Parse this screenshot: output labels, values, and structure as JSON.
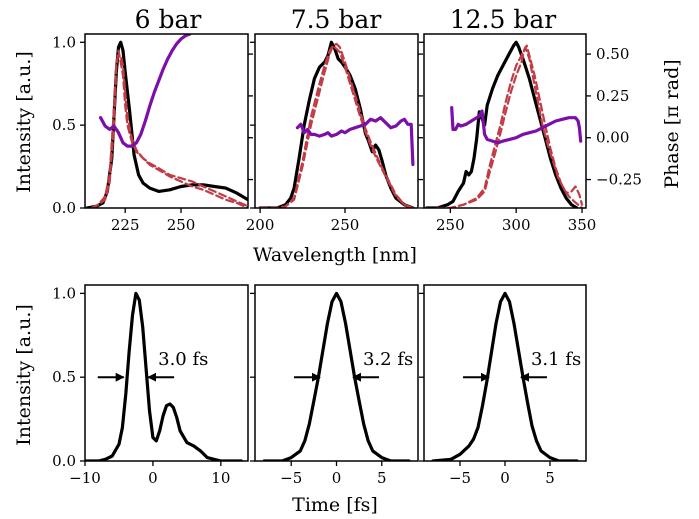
{
  "colors": {
    "spectrum": "#000000",
    "retrieved": "#c23b45",
    "phase": "#7b0fa8"
  },
  "chart_data": [
    {
      "type": "line",
      "title": "6 bar",
      "xlabel": "Wavelength [nm]",
      "ylabel": "Intensity [a.u.]",
      "xlim": [
        207,
        280
      ],
      "ylim": [
        0,
        1.05
      ],
      "xticks": [
        225,
        250
      ],
      "yticks": [
        0.0,
        0.5,
        1.0
      ],
      "y2lim": [
        -0.42,
        0.62
      ],
      "series": [
        {
          "style": "solid",
          "color": "#000000",
          "axis": "left",
          "x": [
            208,
            212,
            215,
            217,
            219,
            220,
            221,
            222,
            223,
            224,
            225,
            227,
            229,
            231,
            233,
            236,
            240,
            245,
            250,
            255,
            260,
            265,
            270,
            275,
            280
          ],
          "y": [
            0.0,
            0.01,
            0.03,
            0.1,
            0.3,
            0.55,
            0.82,
            0.97,
            1.0,
            0.95,
            0.82,
            0.58,
            0.32,
            0.2,
            0.15,
            0.12,
            0.1,
            0.11,
            0.13,
            0.14,
            0.14,
            0.13,
            0.12,
            0.09,
            0.05
          ]
        },
        {
          "style": "dashed",
          "color": "#c23b45",
          "axis": "left",
          "x": [
            210,
            213,
            216,
            218,
            220,
            221,
            222,
            223,
            224,
            225,
            226,
            228,
            230,
            233,
            236,
            240,
            245,
            250,
            255,
            260,
            265,
            270,
            275,
            280
          ],
          "y": [
            0.0,
            0.02,
            0.05,
            0.15,
            0.5,
            0.85,
            0.95,
            0.88,
            0.8,
            0.62,
            0.5,
            0.4,
            0.34,
            0.3,
            0.27,
            0.24,
            0.2,
            0.18,
            0.16,
            0.13,
            0.1,
            0.07,
            0.04,
            0.01
          ]
        },
        {
          "style": "dashed",
          "color": "#c23b45",
          "axis": "left",
          "x": [
            210,
            213,
            216,
            218,
            220,
            221,
            222,
            223,
            224,
            225,
            226,
            228,
            230,
            233,
            236,
            240,
            245,
            250,
            255,
            260,
            265,
            270,
            275,
            280
          ],
          "y": [
            0.0,
            0.02,
            0.07,
            0.2,
            0.6,
            0.88,
            0.92,
            0.92,
            0.86,
            0.7,
            0.55,
            0.42,
            0.35,
            0.3,
            0.26,
            0.23,
            0.19,
            0.16,
            0.13,
            0.11,
            0.08,
            0.05,
            0.03,
            0.0
          ]
        },
        {
          "style": "solid",
          "color": "#7b0fa8",
          "axis": "right",
          "x": [
            214,
            216,
            218,
            220,
            222,
            224,
            226,
            228,
            230,
            232,
            234,
            236,
            238,
            240,
            242,
            244,
            246,
            248,
            250,
            252,
            254
          ],
          "y": [
            0.12,
            0.07,
            0.05,
            0.07,
            0.03,
            -0.03,
            -0.05,
            -0.05,
            -0.03,
            0.02,
            0.1,
            0.19,
            0.27,
            0.34,
            0.41,
            0.47,
            0.52,
            0.56,
            0.59,
            0.61,
            0.62
          ]
        }
      ]
    },
    {
      "type": "line",
      "title": "7.5 bar",
      "xlabel": "",
      "ylabel": "",
      "xlim": [
        197,
        293
      ],
      "ylim": [
        0,
        1.05
      ],
      "xticks": [
        200,
        250
      ],
      "y2lim": [
        -0.42,
        0.62
      ],
      "series": [
        {
          "style": "solid",
          "color": "#000000",
          "axis": "left",
          "x": [
            200,
            210,
            215,
            218,
            220,
            223,
            226,
            229,
            232,
            235,
            238,
            240,
            242,
            244,
            246,
            248,
            250,
            253,
            256,
            259,
            262,
            264,
            266,
            268,
            270,
            272,
            274,
            277,
            280,
            285,
            290
          ],
          "y": [
            0.0,
            0.0,
            0.02,
            0.06,
            0.12,
            0.3,
            0.5,
            0.65,
            0.78,
            0.85,
            0.88,
            0.92,
            1.0,
            0.96,
            0.9,
            0.88,
            0.85,
            0.8,
            0.72,
            0.6,
            0.45,
            0.4,
            0.34,
            0.38,
            0.35,
            0.28,
            0.2,
            0.12,
            0.06,
            0.02,
            0.0
          ]
        },
        {
          "style": "dashed",
          "color": "#c23b45",
          "axis": "left",
          "x": [
            200,
            210,
            215,
            220,
            225,
            230,
            235,
            238,
            241,
            243,
            245,
            247,
            250,
            253,
            256,
            259,
            262,
            265,
            268,
            271,
            274,
            277,
            280,
            285,
            290
          ],
          "y": [
            0.0,
            0.0,
            0.01,
            0.05,
            0.25,
            0.5,
            0.7,
            0.82,
            0.93,
            0.98,
            0.99,
            0.97,
            0.88,
            0.78,
            0.68,
            0.58,
            0.48,
            0.4,
            0.33,
            0.26,
            0.2,
            0.14,
            0.08,
            0.02,
            0.0
          ]
        },
        {
          "style": "dashed",
          "color": "#c23b45",
          "axis": "left",
          "x": [
            200,
            210,
            215,
            220,
            225,
            230,
            235,
            238,
            241,
            243,
            245,
            247,
            250,
            253,
            256,
            259,
            262,
            265,
            268,
            271,
            274,
            277,
            280,
            285,
            290
          ],
          "y": [
            0.0,
            0.0,
            0.01,
            0.06,
            0.28,
            0.55,
            0.75,
            0.86,
            0.95,
            0.98,
            0.96,
            0.94,
            0.85,
            0.75,
            0.65,
            0.55,
            0.46,
            0.38,
            0.31,
            0.25,
            0.19,
            0.13,
            0.07,
            0.02,
            0.0
          ]
        },
        {
          "style": "solid",
          "color": "#7b0fa8",
          "axis": "right",
          "x": [
            222,
            224,
            226,
            228,
            230,
            232,
            235,
            238,
            240,
            242,
            245,
            248,
            250,
            253,
            256,
            259,
            262,
            265,
            268,
            271,
            274,
            277,
            280,
            283,
            285,
            287,
            289,
            290
          ],
          "y": [
            0.06,
            0.08,
            0.03,
            0.05,
            0.02,
            0.02,
            0.01,
            0.02,
            0.03,
            0.01,
            0.02,
            0.04,
            0.03,
            0.05,
            0.06,
            0.07,
            0.08,
            0.11,
            0.1,
            0.12,
            0.09,
            0.06,
            0.07,
            0.1,
            0.11,
            0.08,
            0.08,
            -0.16
          ]
        }
      ]
    },
    {
      "type": "line",
      "title": "12.5 bar",
      "xlabel": "",
      "ylabel": "Phase [π rad]",
      "xlim": [
        230,
        353
      ],
      "ylim": [
        0,
        1.05
      ],
      "xticks": [
        250,
        300,
        350
      ],
      "y2lim": [
        -0.42,
        0.62
      ],
      "y2ticks": [
        -0.25,
        0.0,
        0.25,
        0.5
      ],
      "series": [
        {
          "style": "solid",
          "color": "#000000",
          "axis": "left",
          "x": [
            232,
            240,
            248,
            252,
            256,
            260,
            262,
            264,
            266,
            268,
            270,
            272,
            274,
            276,
            278,
            282,
            286,
            290,
            294,
            298,
            300,
            302,
            306,
            310,
            314,
            318,
            322,
            326,
            330,
            334,
            338,
            342,
            346
          ],
          "y": [
            0.0,
            0.0,
            0.02,
            0.04,
            0.1,
            0.15,
            0.22,
            0.2,
            0.22,
            0.3,
            0.42,
            0.58,
            0.54,
            0.5,
            0.62,
            0.72,
            0.8,
            0.86,
            0.92,
            0.98,
            1.0,
            0.97,
            0.88,
            0.78,
            0.66,
            0.54,
            0.42,
            0.3,
            0.2,
            0.12,
            0.06,
            0.02,
            0.0
          ]
        },
        {
          "style": "dashed",
          "color": "#c23b45",
          "axis": "left",
          "x": [
            240,
            250,
            260,
            270,
            276,
            280,
            284,
            288,
            292,
            296,
            300,
            304,
            306,
            308,
            310,
            314,
            318,
            322,
            326,
            330,
            334,
            338,
            342,
            345,
            348,
            350
          ],
          "y": [
            0.0,
            0.0,
            0.02,
            0.05,
            0.1,
            0.22,
            0.33,
            0.45,
            0.58,
            0.7,
            0.8,
            0.88,
            0.95,
            0.98,
            0.92,
            0.8,
            0.65,
            0.5,
            0.36,
            0.24,
            0.15,
            0.09,
            0.1,
            0.13,
            0.08,
            0.02
          ]
        },
        {
          "style": "dashed",
          "color": "#c23b45",
          "axis": "left",
          "x": [
            240,
            250,
            260,
            270,
            276,
            280,
            284,
            288,
            292,
            296,
            300,
            304,
            307,
            310,
            313,
            316,
            320,
            324,
            328,
            332,
            336,
            340,
            344,
            347,
            350
          ],
          "y": [
            0.0,
            0.0,
            0.02,
            0.06,
            0.12,
            0.26,
            0.38,
            0.5,
            0.64,
            0.76,
            0.86,
            0.92,
            0.97,
            0.9,
            0.78,
            0.66,
            0.5,
            0.38,
            0.28,
            0.18,
            0.12,
            0.07,
            0.04,
            0.02,
            0.0
          ]
        },
        {
          "style": "solid",
          "color": "#7b0fa8",
          "axis": "right",
          "x": [
            251,
            252,
            254,
            256,
            258,
            262,
            266,
            270,
            272,
            274,
            276,
            278,
            282,
            286,
            290,
            295,
            300,
            305,
            310,
            315,
            320,
            325,
            330,
            335,
            340,
            345,
            347,
            348,
            349
          ],
          "y": [
            0.18,
            0.05,
            0.05,
            0.08,
            0.07,
            0.08,
            0.1,
            0.12,
            0.13,
            0.16,
            0.02,
            -0.01,
            -0.02,
            -0.03,
            -0.02,
            -0.01,
            0.0,
            0.02,
            0.03,
            0.04,
            0.06,
            0.08,
            0.1,
            0.11,
            0.12,
            0.12,
            0.1,
            0.06,
            -0.02
          ]
        }
      ]
    },
    {
      "type": "line",
      "title": "",
      "xlabel": "",
      "ylabel": "Intensity [a.u.]",
      "xlim": [
        -10,
        14
      ],
      "ylim": [
        0,
        1.05
      ],
      "xticks": [
        -10,
        0,
        10
      ],
      "yticks": [
        0.0,
        0.5,
        1.0
      ],
      "annotation": "3.0 fs",
      "fwhm": [
        -4.0,
        -1.0
      ],
      "series": [
        {
          "style": "solid",
          "color": "#000000",
          "axis": "left",
          "x": [
            -10,
            -8,
            -7,
            -6,
            -5,
            -4.5,
            -4,
            -3.5,
            -3,
            -2.5,
            -2,
            -1.5,
            -1,
            -0.5,
            0,
            0.5,
            1,
            1.5,
            2,
            2.5,
            3,
            3.5,
            4,
            5,
            6,
            7,
            8,
            9,
            10,
            11,
            12,
            13
          ],
          "y": [
            0.0,
            0.0,
            0.01,
            0.03,
            0.1,
            0.2,
            0.4,
            0.65,
            0.87,
            1.0,
            0.96,
            0.8,
            0.55,
            0.3,
            0.14,
            0.12,
            0.18,
            0.27,
            0.33,
            0.34,
            0.32,
            0.26,
            0.18,
            0.11,
            0.09,
            0.06,
            0.02,
            0.01,
            0.0,
            0.0,
            0.0,
            0.0
          ]
        }
      ]
    },
    {
      "type": "line",
      "title": "",
      "xlabel": "Time [fs]",
      "ylabel": "",
      "xlim": [
        -9,
        9
      ],
      "ylim": [
        0,
        1.05
      ],
      "xticks": [
        -5,
        0,
        5
      ],
      "annotation": "3.2 fs",
      "fwhm": [
        -1.6,
        1.6
      ],
      "series": [
        {
          "style": "solid",
          "color": "#000000",
          "axis": "left",
          "x": [
            -8,
            -6,
            -5,
            -4,
            -3.5,
            -3,
            -2.5,
            -2,
            -1.5,
            -1,
            -0.5,
            0,
            0.5,
            1,
            1.5,
            2,
            2.5,
            3,
            3.5,
            4,
            5,
            6,
            7,
            8
          ],
          "y": [
            0.0,
            0.0,
            0.02,
            0.06,
            0.12,
            0.22,
            0.36,
            0.5,
            0.66,
            0.82,
            0.95,
            1.0,
            0.95,
            0.82,
            0.66,
            0.5,
            0.36,
            0.22,
            0.12,
            0.06,
            0.02,
            0.0,
            0.0,
            0.0
          ]
        }
      ]
    },
    {
      "type": "line",
      "title": "",
      "xlabel": "",
      "ylabel": "",
      "xlim": [
        -9,
        9
      ],
      "ylim": [
        0,
        1.05
      ],
      "xticks": [
        -5,
        0,
        5
      ],
      "annotation": "3.1 fs",
      "fwhm": [
        -1.55,
        1.55
      ],
      "series": [
        {
          "style": "solid",
          "color": "#000000",
          "axis": "left",
          "x": [
            -8,
            -6,
            -5,
            -4,
            -3.5,
            -3,
            -2.5,
            -2,
            -1.5,
            -1,
            -0.5,
            0,
            0.5,
            1,
            1.5,
            2,
            2.5,
            3,
            3.5,
            4,
            5,
            6,
            7,
            8
          ],
          "y": [
            0.0,
            0.01,
            0.04,
            0.09,
            0.13,
            0.2,
            0.33,
            0.48,
            0.65,
            0.82,
            0.95,
            1.0,
            0.95,
            0.82,
            0.66,
            0.5,
            0.35,
            0.21,
            0.12,
            0.06,
            0.02,
            0.0,
            0.0,
            0.0
          ]
        }
      ]
    }
  ]
}
